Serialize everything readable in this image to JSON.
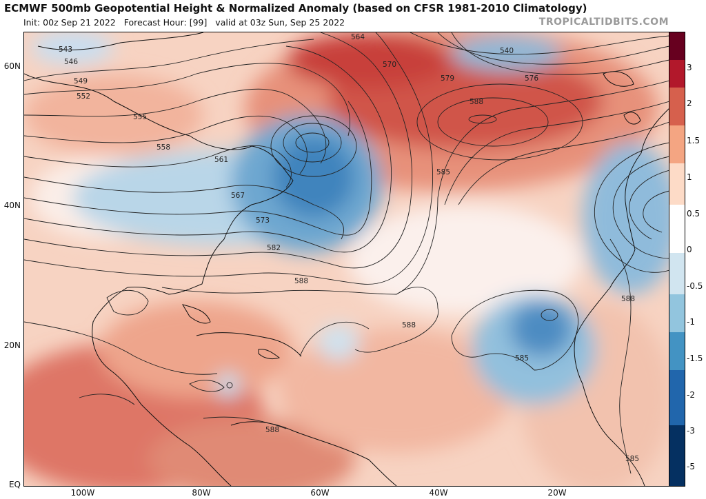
{
  "header": {
    "title": "ECMWF 500mb Geopotential Height & Normalized Anomaly (based on CFSR 1981-2010 Climatology)",
    "init": "Init: 00z Sep 21 2022",
    "forecast_hour": "Forecast Hour: [99]",
    "valid": "valid at 03z Sun, Sep 25 2022",
    "brand": "TROPICALTIDBITS.COM"
  },
  "axes": {
    "lat_labels": [
      "60N",
      "40N",
      "20N",
      "EQ"
    ],
    "lon_labels": [
      "100W",
      "80W",
      "60W",
      "40W",
      "20W"
    ]
  },
  "colorbar": {
    "ticks": [
      "3",
      "2",
      "1.5",
      "1",
      "0.5",
      "0",
      "-0.5",
      "-1",
      "-1.5",
      "-2",
      "-3",
      "-5"
    ],
    "colors": [
      "#67001f",
      "#b2182b",
      "#d6604d",
      "#f4a582",
      "#fddbc7",
      "#ffffff",
      "#d1e5f0",
      "#92c5de",
      "#4393c3",
      "#2166ac",
      "#053061"
    ]
  },
  "contour_labels": [
    "543",
    "546",
    "549",
    "552",
    "555",
    "558",
    "561",
    "564",
    "567",
    "570",
    "573",
    "576",
    "579",
    "582",
    "585",
    "588",
    "540"
  ]
}
